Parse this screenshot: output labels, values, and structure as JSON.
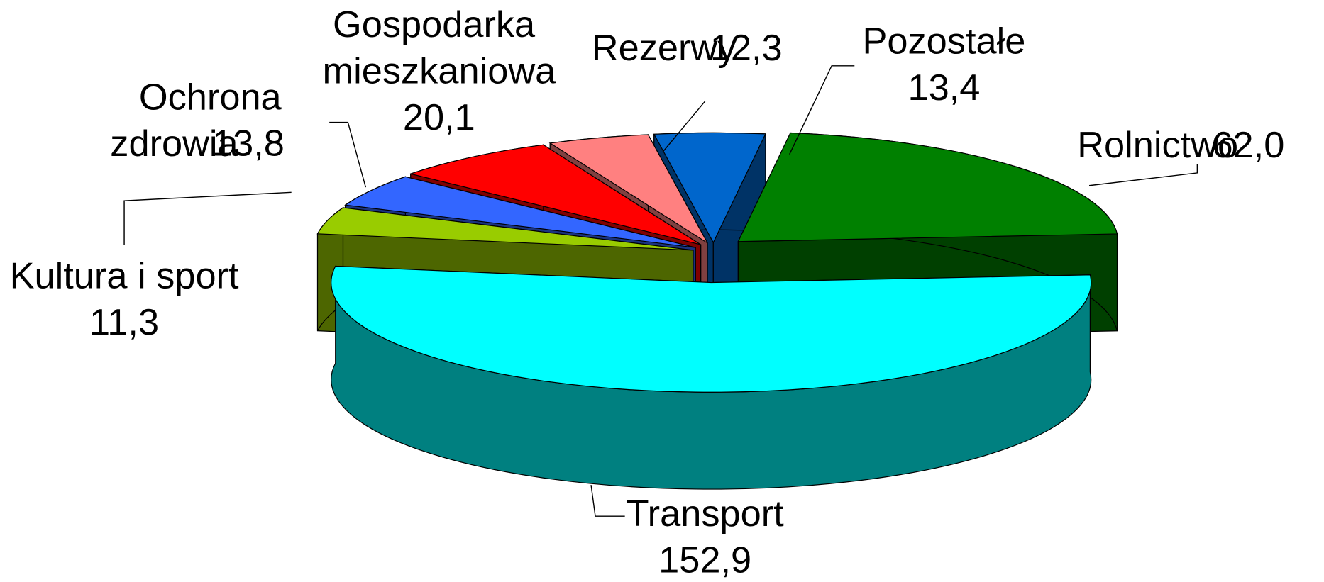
{
  "chart_data": {
    "type": "pie3d",
    "categories": [
      "Transport",
      "Kultura i sport",
      "Ochrona zdrowia",
      "Gospodarka mieszkaniowa",
      "Rezerwy",
      "Pozostałe",
      "Rolnictwo"
    ],
    "values": [
      152.9,
      11.3,
      13.8,
      20.1,
      12.3,
      13.4,
      62.0
    ],
    "value_labels": [
      "152,9",
      "11,3",
      "13,8",
      "20,1",
      "12,3",
      "13,4",
      "62,0"
    ],
    "colors": [
      "#00ffff",
      "#99cc00",
      "#3366ff",
      "#ff0000",
      "#ff8080",
      "#0066cc",
      "#008000"
    ]
  }
}
